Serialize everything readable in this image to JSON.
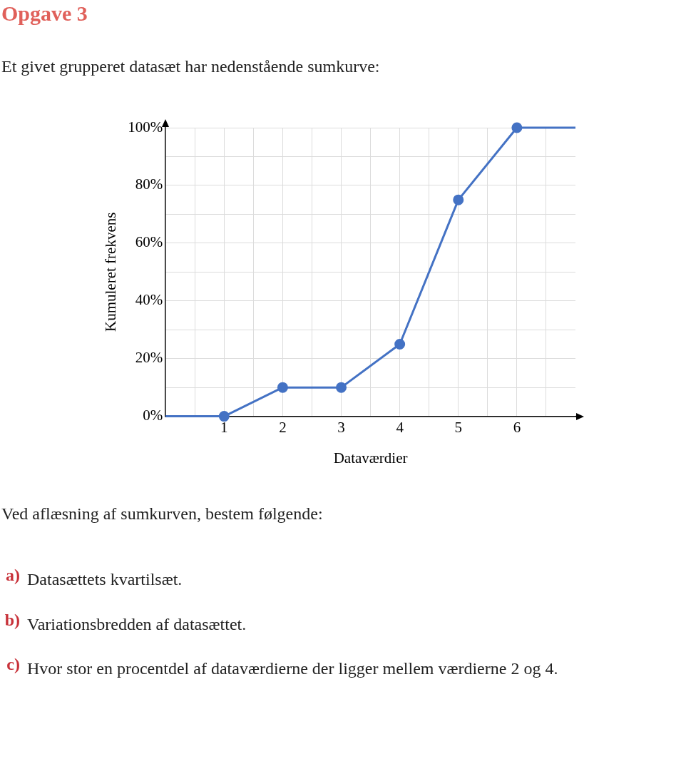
{
  "chart_data": {
    "type": "line",
    "title": "Opgave 3",
    "subtitle": "Et givet grupperet datasæt har nedenstående sumkurve:",
    "xlabel": "Dataværdier",
    "ylabel": "Kumuleret frekvens",
    "x": [
      0,
      1,
      2,
      3,
      4,
      5,
      6,
      7
    ],
    "series": [
      {
        "color": "#4472c4",
        "values": [
          0,
          0,
          10,
          10,
          25,
          75,
          100,
          100
        ]
      }
    ],
    "xlim": [
      0,
      7
    ],
    "xticks": [
      {
        "value": 0.5,
        "label": null
      },
      1,
      {
        "value": 1.5,
        "label": null
      },
      2,
      {
        "value": 2.5,
        "label": null
      },
      3,
      {
        "value": 3.5,
        "label": null
      },
      4,
      {
        "value": 4.5,
        "label": null
      },
      5,
      {
        "value": 5.5,
        "label": null
      },
      6,
      {
        "value": 6.5,
        "label": null
      }
    ],
    "ylim": [
      0,
      100
    ],
    "yticks": [
      {
        "value": 0,
        "label": "0%"
      },
      {
        "value": 10,
        "label": null
      },
      {
        "value": 20,
        "label": "20%"
      },
      {
        "value": 30,
        "label": null
      },
      {
        "value": 40,
        "label": "40%"
      },
      {
        "value": 50,
        "label": null
      },
      {
        "value": 60,
        "label": "60%"
      },
      {
        "value": 70,
        "label": null
      },
      {
        "value": 80,
        "label": "80%"
      },
      {
        "value": 90,
        "label": null
      },
      {
        "value": 100,
        "label": "100%"
      }
    ],
    "grid": true,
    "legend": false,
    "marker": "circle",
    "line_style": "solid",
    "annotations": [
      "Ved aflæsning af sumkurven, bestem følgende:",
      "a) Datasættets kvartilsæt.",
      "b) Variationsbredden af datasættet.",
      "c) Hvor stor en procentdel af dataværdierne der ligger mellem værdierne 2 og 4."
    ]
  }
}
